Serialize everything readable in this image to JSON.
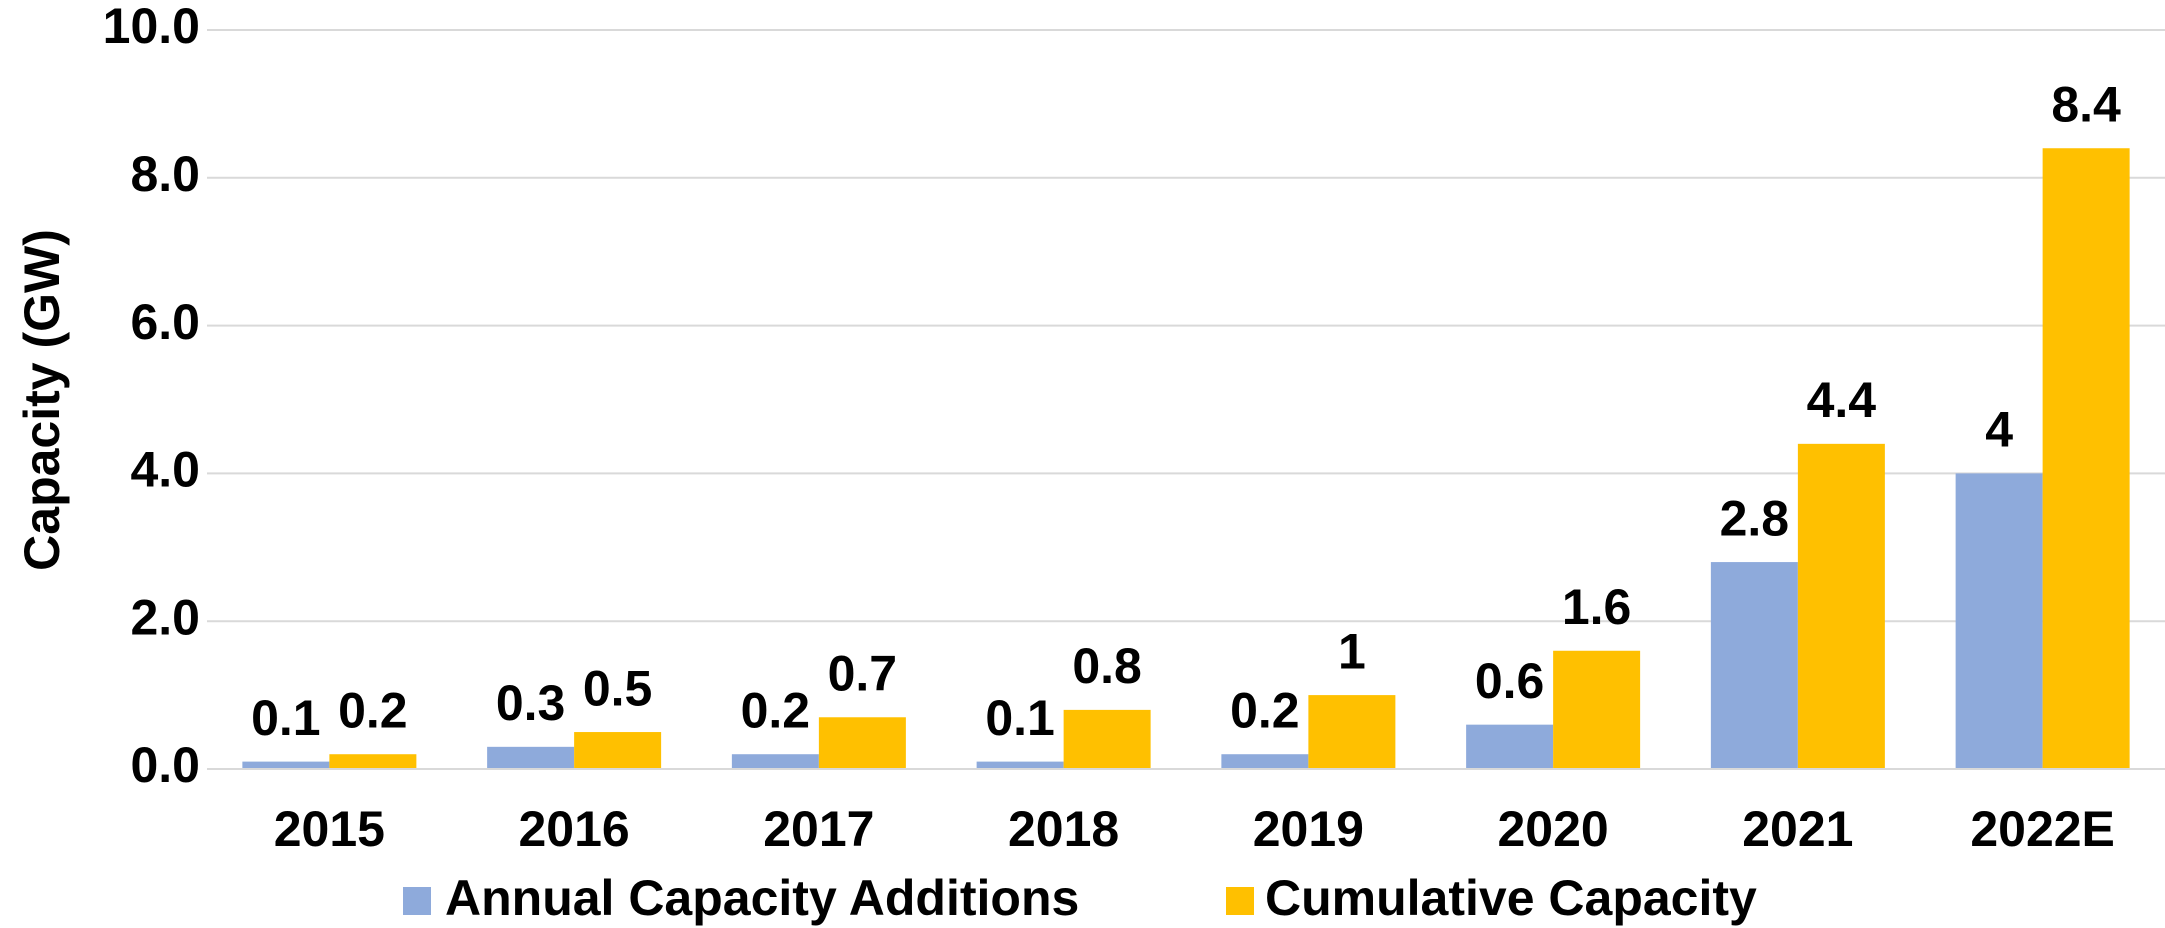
{
  "chart_data": {
    "type": "bar",
    "y_label": "Capacity (GW)",
    "categories": [
      "2015",
      "2016",
      "2017",
      "2018",
      "2019",
      "2020",
      "2021",
      "2022E"
    ],
    "series": [
      {
        "name": "Annual Capacity Additions",
        "color": "#8eaadb",
        "values": [
          0.1,
          0.3,
          0.2,
          0.1,
          0.2,
          0.6,
          2.8,
          4.0
        ]
      },
      {
        "name": "Cumulative Capacity",
        "color": "#ffc000",
        "values": [
          0.2,
          0.5,
          0.7,
          0.8,
          1.0,
          1.6,
          4.4,
          8.4
        ]
      }
    ],
    "ylim": [
      0,
      10
    ],
    "yticks": [
      {
        "value": 0,
        "label": "0.0"
      },
      {
        "value": 2,
        "label": "2.0"
      },
      {
        "value": 4,
        "label": "4.0"
      },
      {
        "value": 6,
        "label": "6.0"
      },
      {
        "value": 8,
        "label": "8.0"
      },
      {
        "value": 10,
        "label": "10.0"
      }
    ],
    "grid": true,
    "legend": "bottom"
  }
}
